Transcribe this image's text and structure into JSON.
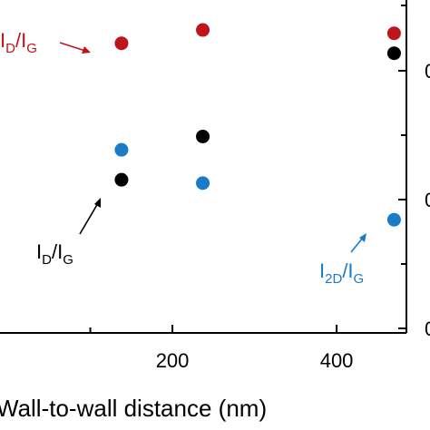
{
  "chart_data": {
    "type": "scatter",
    "title": "",
    "xlabel": "Wall-to-wall distance (nm)",
    "ylabel": "",
    "xlim": [
      -10,
      485
    ],
    "ylim_left": [
      0,
      1
    ],
    "x_ticks": [
      200,
      400
    ],
    "x_tick_labels": [
      "200",
      "400"
    ],
    "right_tick_labels": [
      "0",
      "0",
      "0"
    ],
    "grid": false,
    "legend": "none",
    "series": [
      {
        "name": "ID/IG (red)",
        "color": "#c0141c",
        "x": [
          138,
          237,
          470
        ],
        "y": [
          0.87,
          0.91,
          0.9
        ]
      },
      {
        "name": "ID/IG (black)",
        "color": "#000000",
        "x": [
          138,
          237,
          470
        ],
        "y": [
          0.46,
          0.59,
          0.84
        ]
      },
      {
        "name": "I2D/IG",
        "color": "#1a7cc7",
        "x": [
          138,
          237,
          470
        ],
        "y": [
          0.55,
          0.45,
          0.34
        ]
      }
    ],
    "annotations": [
      {
        "id": "red",
        "main1": "I",
        "sub1": "D",
        "main2": "/I",
        "sub2": "G",
        "color": "#c0141c"
      },
      {
        "id": "black",
        "main1": "I",
        "sub1": "D",
        "main2": "/I",
        "sub2": "G",
        "color": "#000000"
      },
      {
        "id": "blue",
        "main1": "I",
        "sub1": "2D",
        "main2": "/I",
        "sub2": "G",
        "color": "#1a7cc7"
      }
    ]
  }
}
